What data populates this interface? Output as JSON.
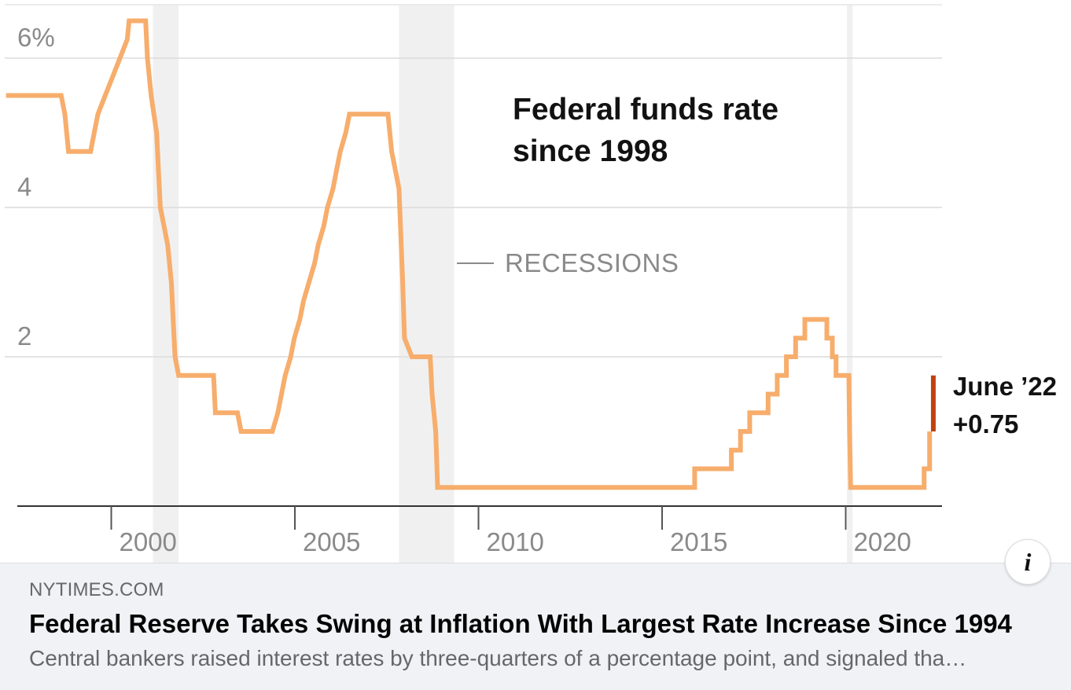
{
  "chart_data": {
    "type": "line",
    "title": "Federal funds rate since 1998",
    "title_lines": [
      "Federal funds rate",
      "since 1998"
    ],
    "x_axis": {
      "range": [
        1996.5,
        2022.6
      ],
      "ticks": [
        2000,
        2005,
        2010,
        2015,
        2020
      ],
      "tick_labels": [
        "2000",
        "2005",
        "2010",
        "2015",
        "2020"
      ]
    },
    "y_axis": {
      "range": [
        0,
        6.7
      ],
      "gridlines": [
        2,
        4,
        6
      ],
      "tick_labels": [
        "2",
        "4",
        "6%"
      ]
    },
    "grid": true,
    "series": [
      {
        "color": "#f7ad6c",
        "points": [
          [
            1997.2,
            5.5
          ],
          [
            1998.7,
            5.5
          ],
          [
            1998.8,
            5.25
          ],
          [
            1998.85,
            5.0
          ],
          [
            1998.9,
            4.75
          ],
          [
            1999.5,
            4.75
          ],
          [
            1999.6,
            5.0
          ],
          [
            1999.7,
            5.25
          ],
          [
            1999.9,
            5.5
          ],
          [
            2000.1,
            5.75
          ],
          [
            2000.3,
            6.0
          ],
          [
            2000.5,
            6.25
          ],
          [
            2000.55,
            6.5
          ],
          [
            2001.0,
            6.5
          ],
          [
            2001.05,
            6.0
          ],
          [
            2001.15,
            5.5
          ],
          [
            2001.3,
            5.0
          ],
          [
            2001.35,
            4.5
          ],
          [
            2001.4,
            4.0
          ],
          [
            2001.5,
            3.75
          ],
          [
            2001.6,
            3.5
          ],
          [
            2001.7,
            3.0
          ],
          [
            2001.75,
            2.5
          ],
          [
            2001.8,
            2.0
          ],
          [
            2001.9,
            1.75
          ],
          [
            2002.85,
            1.75
          ],
          [
            2002.9,
            1.25
          ],
          [
            2003.5,
            1.25
          ],
          [
            2003.6,
            1.0
          ],
          [
            2004.45,
            1.0
          ],
          [
            2004.6,
            1.25
          ],
          [
            2004.7,
            1.5
          ],
          [
            2004.8,
            1.75
          ],
          [
            2004.95,
            2.0
          ],
          [
            2005.05,
            2.25
          ],
          [
            2005.2,
            2.5
          ],
          [
            2005.3,
            2.75
          ],
          [
            2005.45,
            3.0
          ],
          [
            2005.6,
            3.25
          ],
          [
            2005.7,
            3.5
          ],
          [
            2005.85,
            3.75
          ],
          [
            2005.95,
            4.0
          ],
          [
            2006.1,
            4.25
          ],
          [
            2006.2,
            4.5
          ],
          [
            2006.3,
            4.75
          ],
          [
            2006.45,
            5.0
          ],
          [
            2006.55,
            5.25
          ],
          [
            2007.6,
            5.25
          ],
          [
            2007.7,
            4.75
          ],
          [
            2007.8,
            4.5
          ],
          [
            2007.9,
            4.25
          ],
          [
            2008.0,
            3.0
          ],
          [
            2008.05,
            2.25
          ],
          [
            2008.25,
            2.0
          ],
          [
            2008.75,
            2.0
          ],
          [
            2008.8,
            1.5
          ],
          [
            2008.9,
            1.0
          ],
          [
            2008.95,
            0.25
          ],
          [
            2015.95,
            0.25
          ],
          [
            2015.95,
            0.5
          ],
          [
            2016.95,
            0.5
          ],
          [
            2016.95,
            0.75
          ],
          [
            2017.2,
            0.75
          ],
          [
            2017.2,
            1.0
          ],
          [
            2017.45,
            1.0
          ],
          [
            2017.45,
            1.25
          ],
          [
            2017.95,
            1.25
          ],
          [
            2017.95,
            1.5
          ],
          [
            2018.2,
            1.5
          ],
          [
            2018.2,
            1.75
          ],
          [
            2018.45,
            1.75
          ],
          [
            2018.45,
            2.0
          ],
          [
            2018.7,
            2.0
          ],
          [
            2018.7,
            2.25
          ],
          [
            2018.95,
            2.25
          ],
          [
            2018.95,
            2.5
          ],
          [
            2019.55,
            2.5
          ],
          [
            2019.55,
            2.25
          ],
          [
            2019.7,
            2.25
          ],
          [
            2019.7,
            2.0
          ],
          [
            2019.8,
            2.0
          ],
          [
            2019.8,
            1.75
          ],
          [
            2020.15,
            1.75
          ],
          [
            2020.17,
            1.0
          ],
          [
            2020.2,
            0.25
          ],
          [
            2022.2,
            0.25
          ],
          [
            2022.2,
            0.5
          ],
          [
            2022.35,
            0.5
          ],
          [
            2022.35,
            1.0
          ]
        ]
      }
    ],
    "recessions": [
      [
        2001.2,
        2001.9
      ],
      [
        2007.9,
        2009.4
      ],
      [
        2020.1,
        2020.25
      ]
    ],
    "legend": {
      "label": "RECESSIONS",
      "placement": "center"
    },
    "annotation": {
      "lines": [
        "June ’22",
        "+0.75"
      ],
      "from": 1.0,
      "to": 1.75,
      "x": 2022.45,
      "color": "#c0410f"
    }
  },
  "link_preview": {
    "domain": "NYTIMES.COM",
    "title": "Federal Reserve Takes Swing at Inflation With Largest Rate Increase Since 1994",
    "description": "Central bankers raised interest rates by three-quarters of a percentage point, and signaled tha…"
  },
  "info_icon": {
    "icon": "info-icon",
    "glyph": "i"
  }
}
